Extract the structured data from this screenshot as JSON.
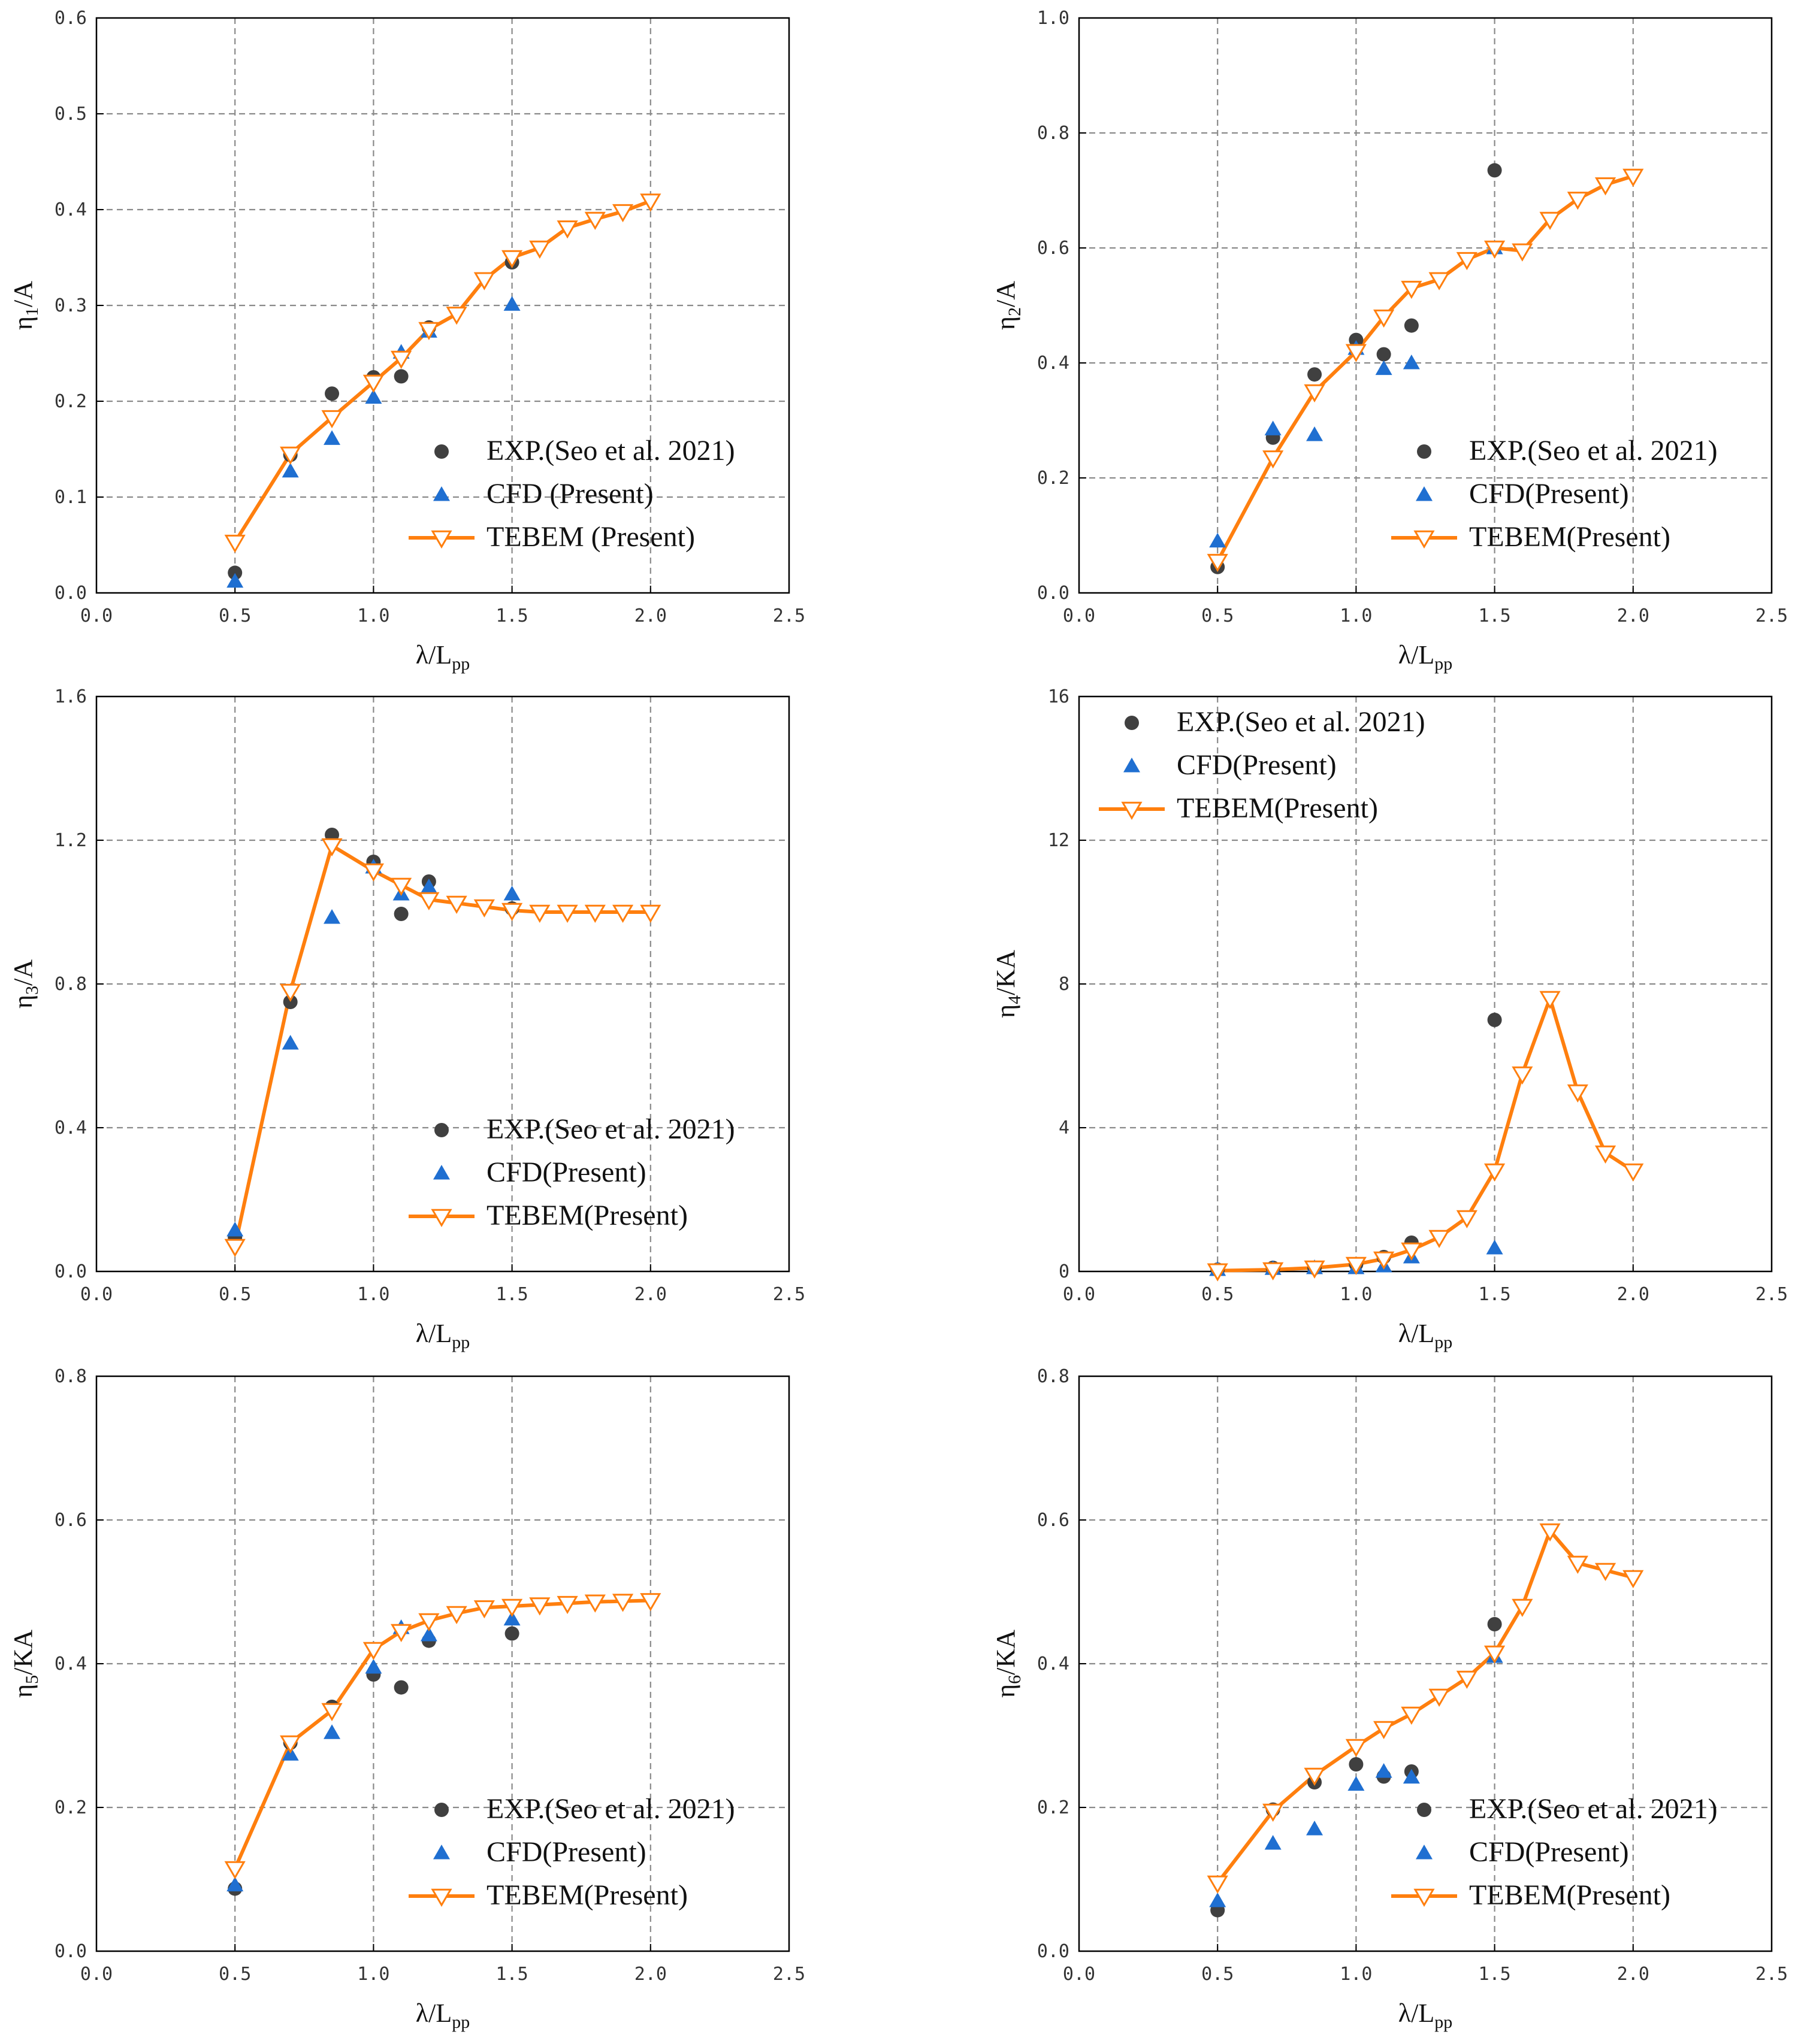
{
  "legend_labels": {
    "exp": "EXP.(Seo et al. 2021)",
    "cfd": "CFD (Present)",
    "cfd_alt": "CFD(Present)",
    "tebem": "TEBEM (Present)",
    "tebem_alt": "TEBEM(Present)"
  },
  "colors": {
    "exp": "#404040",
    "cfd": "#1f6fd1",
    "tebem": "#ff7f0e",
    "grid": "#8a8a8a"
  },
  "chart_data": [
    {
      "type": "line",
      "panel": "a",
      "xlabel_main": "λ/L",
      "xlabel_sub": "pp",
      "ylabel_main": "η",
      "ylabel_sub": "1",
      "ylabel_suffix": "/A",
      "xlim": [
        0,
        2.5
      ],
      "ylim": [
        0,
        0.6
      ],
      "x_ticks": [
        "0.0",
        "0.5",
        "1.0",
        "1.5",
        "2.0",
        "2.5"
      ],
      "y_ticks": [
        "0.0",
        "0.1",
        "0.2",
        "0.3",
        "0.4",
        "0.5",
        "0.6"
      ],
      "legend": {
        "position": "bottom-right",
        "labels": [
          "EXP.(Seo et al. 2021)",
          "CFD (Present)",
          "TEBEM (Present)"
        ]
      },
      "series": [
        {
          "name": "EXP.(Seo et al. 2021)",
          "kind": "scatter-circle",
          "x": [
            0.5,
            0.7,
            0.85,
            1.0,
            1.1,
            1.2,
            1.5
          ],
          "y": [
            0.021,
            0.144,
            0.208,
            0.225,
            0.226,
            0.277,
            0.345
          ]
        },
        {
          "name": "CFD (Present)",
          "kind": "scatter-triangle",
          "x": [
            0.5,
            0.7,
            0.85,
            1.0,
            1.1,
            1.2,
            1.5
          ],
          "y": [
            0.012,
            0.127,
            0.161,
            0.204,
            0.251,
            0.273,
            0.301
          ]
        },
        {
          "name": "TEBEM (Present)",
          "kind": "line-triangle-down",
          "x": [
            0.5,
            0.7,
            0.85,
            1.0,
            1.1,
            1.2,
            1.3,
            1.4,
            1.5,
            1.6,
            1.7,
            1.8,
            1.9,
            2.0
          ],
          "y": [
            0.053,
            0.145,
            0.183,
            0.22,
            0.245,
            0.275,
            0.291,
            0.327,
            0.35,
            0.36,
            0.381,
            0.39,
            0.398,
            0.409
          ]
        }
      ]
    },
    {
      "type": "line",
      "panel": "b",
      "xlabel_main": "λ/L",
      "xlabel_sub": "pp",
      "ylabel_main": "η",
      "ylabel_sub": "2",
      "ylabel_suffix": "/A",
      "xlim": [
        0,
        2.5
      ],
      "ylim": [
        0,
        1.0
      ],
      "x_ticks": [
        "0.0",
        "0.5",
        "1.0",
        "1.5",
        "2.0",
        "2.5"
      ],
      "y_ticks": [
        "0.0",
        "0.2",
        "0.4",
        "0.6",
        "0.8",
        "1.0"
      ],
      "legend": {
        "position": "bottom-right",
        "labels": [
          "EXP.(Seo et al. 2021)",
          "CFD(Present)",
          "TEBEM(Present)"
        ]
      },
      "series": [
        {
          "name": "EXP.(Seo et al. 2021)",
          "kind": "scatter-circle",
          "x": [
            0.5,
            0.7,
            0.85,
            1.0,
            1.1,
            1.2,
            1.5
          ],
          "y": [
            0.045,
            0.27,
            0.38,
            0.44,
            0.415,
            0.465,
            0.735
          ]
        },
        {
          "name": "CFD(Present)",
          "kind": "scatter-triangle",
          "x": [
            0.5,
            0.7,
            0.85,
            1.0,
            1.1,
            1.2,
            1.5
          ],
          "y": [
            0.09,
            0.285,
            0.275,
            0.425,
            0.39,
            0.4,
            0.6
          ]
        },
        {
          "name": "TEBEM(Present)",
          "kind": "line-triangle-down",
          "x": [
            0.5,
            0.7,
            0.85,
            1.0,
            1.1,
            1.2,
            1.3,
            1.4,
            1.5,
            1.6,
            1.7,
            1.8,
            1.9,
            2.0
          ],
          "y": [
            0.055,
            0.235,
            0.35,
            0.42,
            0.48,
            0.53,
            0.545,
            0.58,
            0.6,
            0.595,
            0.65,
            0.685,
            0.71,
            0.725
          ]
        }
      ]
    },
    {
      "type": "line",
      "panel": "c",
      "xlabel_main": "λ/L",
      "xlabel_sub": "pp",
      "ylabel_main": "η",
      "ylabel_sub": "3",
      "ylabel_suffix": "/A",
      "xlim": [
        0,
        2.5
      ],
      "ylim": [
        0,
        1.6
      ],
      "x_ticks": [
        "0.0",
        "0.5",
        "1.0",
        "1.5",
        "2.0",
        "2.5"
      ],
      "y_ticks": [
        "0.0",
        "0.4",
        "0.8",
        "1.2",
        "1.6"
      ],
      "legend": {
        "position": "bottom-right",
        "labels": [
          "EXP.(Seo et al. 2021)",
          "CFD(Present)",
          "TEBEM(Present)"
        ]
      },
      "series": [
        {
          "name": "EXP.(Seo et al. 2021)",
          "kind": "scatter-circle",
          "x": [
            0.5,
            0.7,
            0.85,
            1.0,
            1.1,
            1.2,
            1.5
          ],
          "y": [
            0.095,
            0.75,
            1.215,
            1.14,
            0.995,
            1.085,
            1.01
          ]
        },
        {
          "name": "CFD(Present)",
          "kind": "scatter-triangle",
          "x": [
            0.5,
            0.7,
            0.85,
            1.0,
            1.1,
            1.2,
            1.5
          ],
          "y": [
            0.115,
            0.635,
            0.985,
            1.125,
            1.05,
            1.07,
            1.05
          ]
        },
        {
          "name": "TEBEM(Present)",
          "kind": "line-triangle-down",
          "x": [
            0.5,
            0.7,
            0.85,
            1.0,
            1.1,
            1.2,
            1.3,
            1.4,
            1.5,
            1.6,
            1.7,
            1.8,
            1.9,
            2.0
          ],
          "y": [
            0.07,
            0.78,
            1.185,
            1.115,
            1.075,
            1.035,
            1.025,
            1.015,
            1.005,
            1.0,
            1.0,
            1.0,
            1.0,
            1.0
          ]
        }
      ]
    },
    {
      "type": "line",
      "panel": "d",
      "xlabel_main": "λ/L",
      "xlabel_sub": "pp",
      "ylabel_main": "η",
      "ylabel_sub": "4",
      "ylabel_suffix": "/KA",
      "xlim": [
        0,
        2.5
      ],
      "ylim": [
        0,
        16
      ],
      "x_ticks": [
        "0.0",
        "0.5",
        "1.0",
        "1.5",
        "2.0",
        "2.5"
      ],
      "y_ticks": [
        "0",
        "4",
        "8",
        "12",
        "16"
      ],
      "legend": {
        "position": "top-left",
        "labels": [
          "EXP.(Seo et al. 2021)",
          "CFD(Present)",
          "TEBEM(Present)"
        ]
      },
      "series": [
        {
          "name": "EXP.(Seo et al. 2021)",
          "kind": "scatter-circle",
          "x": [
            0.5,
            0.7,
            0.85,
            1.0,
            1.1,
            1.2,
            1.5
          ],
          "y": [
            0.05,
            0.1,
            0.1,
            0.2,
            0.4,
            0.8,
            7.0
          ]
        },
        {
          "name": "CFD(Present)",
          "kind": "scatter-triangle",
          "x": [
            0.5,
            0.7,
            0.85,
            1.0,
            1.1,
            1.2,
            1.5
          ],
          "y": [
            0.05,
            0.08,
            0.1,
            0.1,
            0.15,
            0.4,
            0.65
          ]
        },
        {
          "name": "TEBEM(Present)",
          "kind": "line-triangle-down",
          "x": [
            0.5,
            0.7,
            0.85,
            1.0,
            1.1,
            1.2,
            1.3,
            1.4,
            1.5,
            1.6,
            1.7,
            1.8,
            1.9,
            2.0
          ],
          "y": [
            0.02,
            0.05,
            0.1,
            0.2,
            0.35,
            0.6,
            0.95,
            1.5,
            2.8,
            5.5,
            7.6,
            5.0,
            3.3,
            2.8
          ]
        }
      ]
    },
    {
      "type": "line",
      "panel": "e",
      "xlabel_main": "λ/L",
      "xlabel_sub": "pp",
      "ylabel_main": "η",
      "ylabel_sub": "5",
      "ylabel_suffix": "/KA",
      "xlim": [
        0,
        2.5
      ],
      "ylim": [
        0,
        0.8
      ],
      "x_ticks": [
        "0.0",
        "0.5",
        "1.0",
        "1.5",
        "2.0",
        "2.5"
      ],
      "y_ticks": [
        "0.0",
        "0.2",
        "0.4",
        "0.6",
        "0.8"
      ],
      "legend": {
        "position": "bottom-right",
        "labels": [
          "EXP.(Seo et al. 2021)",
          "CFD(Present)",
          "TEBEM(Present)"
        ]
      },
      "series": [
        {
          "name": "EXP.(Seo et al. 2021)",
          "kind": "scatter-circle",
          "x": [
            0.5,
            0.7,
            0.85,
            1.0,
            1.1,
            1.2,
            1.5
          ],
          "y": [
            0.087,
            0.29,
            0.34,
            0.385,
            0.367,
            0.432,
            0.442
          ]
        },
        {
          "name": "CFD(Present)",
          "kind": "scatter-triangle",
          "x": [
            0.5,
            0.7,
            0.85,
            1.0,
            1.1,
            1.2,
            1.5
          ],
          "y": [
            0.092,
            0.274,
            0.304,
            0.395,
            0.45,
            0.44,
            0.462
          ]
        },
        {
          "name": "TEBEM(Present)",
          "kind": "line-triangle-down",
          "x": [
            0.5,
            0.7,
            0.85,
            1.0,
            1.1,
            1.2,
            1.3,
            1.4,
            1.5,
            1.6,
            1.7,
            1.8,
            1.9,
            2.0
          ],
          "y": [
            0.115,
            0.29,
            0.335,
            0.42,
            0.445,
            0.46,
            0.47,
            0.478,
            0.48,
            0.482,
            0.484,
            0.486,
            0.487,
            0.488
          ]
        }
      ]
    },
    {
      "type": "line",
      "panel": "f",
      "xlabel_main": "λ/L",
      "xlabel_sub": "pp",
      "ylabel_main": "η",
      "ylabel_sub": "6",
      "ylabel_suffix": "/KA",
      "xlim": [
        0,
        2.5
      ],
      "ylim": [
        0,
        0.8
      ],
      "x_ticks": [
        "0.0",
        "0.5",
        "1.0",
        "1.5",
        "2.0",
        "2.5"
      ],
      "y_ticks": [
        "0.0",
        "0.2",
        "0.4",
        "0.6",
        "0.8"
      ],
      "legend": {
        "position": "bottom-right",
        "labels": [
          "EXP.(Seo et al. 2021)",
          "CFD(Present)",
          "TEBEM(Present)"
        ]
      },
      "series": [
        {
          "name": "EXP.(Seo et al. 2021)",
          "kind": "scatter-circle",
          "x": [
            0.5,
            0.7,
            0.85,
            1.0,
            1.1,
            1.2,
            1.5
          ],
          "y": [
            0.057,
            0.197,
            0.235,
            0.26,
            0.243,
            0.25,
            0.455
          ]
        },
        {
          "name": "CFD(Present)",
          "kind": "scatter-triangle",
          "x": [
            0.5,
            0.7,
            0.85,
            1.0,
            1.1,
            1.2,
            1.5
          ],
          "y": [
            0.07,
            0.15,
            0.17,
            0.232,
            0.25,
            0.242,
            0.41
          ]
        },
        {
          "name": "TEBEM(Present)",
          "kind": "line-triangle-down",
          "x": [
            0.5,
            0.7,
            0.85,
            1.0,
            1.1,
            1.2,
            1.3,
            1.4,
            1.5,
            1.6,
            1.7,
            1.8,
            1.9,
            2.0
          ],
          "y": [
            0.095,
            0.195,
            0.245,
            0.285,
            0.31,
            0.33,
            0.355,
            0.38,
            0.415,
            0.48,
            0.585,
            0.54,
            0.53,
            0.52
          ]
        }
      ]
    }
  ]
}
